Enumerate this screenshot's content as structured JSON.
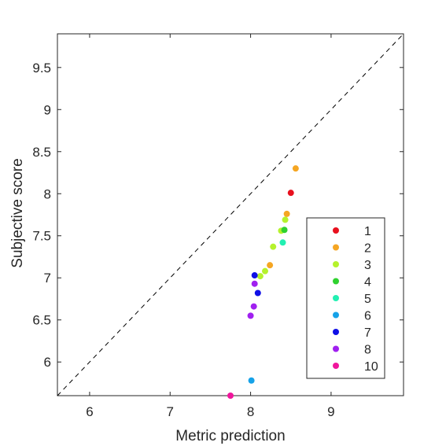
{
  "chart_data": {
    "type": "scatter",
    "xlabel": "Metric prediction",
    "ylabel": "Subjective score",
    "xlim": [
      5.6,
      9.9
    ],
    "ylim": [
      5.6,
      9.9
    ],
    "xticks": [
      6,
      7,
      8,
      9
    ],
    "yticks": [
      6,
      6.5,
      7,
      7.5,
      8,
      8.5,
      9,
      9.5
    ],
    "xtick_labels": [
      "6",
      "7",
      "8",
      "9"
    ],
    "ytick_labels": [
      "6",
      "6.5",
      "7",
      "7.5",
      "8",
      "8.5",
      "9",
      "9.5"
    ],
    "reference_line": "y = x (dashed)",
    "grid": false,
    "legend_position": "bottom-right",
    "series": [
      {
        "name": "1",
        "color": "#e8101e",
        "points": [
          [
            8.5,
            8.01
          ]
        ]
      },
      {
        "name": "2",
        "color": "#f5a623",
        "points": [
          [
            8.56,
            8.3
          ],
          [
            8.45,
            7.76
          ],
          [
            8.24,
            7.15
          ]
        ]
      },
      {
        "name": "3",
        "color": "#b5f22c",
        "points": [
          [
            8.43,
            7.69
          ],
          [
            8.38,
            7.56
          ],
          [
            8.28,
            7.37
          ],
          [
            8.18,
            7.08
          ],
          [
            8.12,
            7.02
          ]
        ]
      },
      {
        "name": "4",
        "color": "#2fd12f",
        "points": [
          [
            8.42,
            7.57
          ]
        ]
      },
      {
        "name": "5",
        "color": "#22f0b2",
        "points": [
          [
            8.4,
            7.42
          ]
        ]
      },
      {
        "name": "6",
        "color": "#16a2e8",
        "points": [
          [
            8.01,
            5.78
          ]
        ]
      },
      {
        "name": "7",
        "color": "#1010e6",
        "points": [
          [
            8.05,
            7.03
          ],
          [
            8.09,
            6.82
          ]
        ]
      },
      {
        "name": "8",
        "color": "#a020f0",
        "points": [
          [
            8.05,
            6.93
          ],
          [
            8.04,
            6.66
          ],
          [
            8.0,
            6.55
          ]
        ]
      },
      {
        "name": "10",
        "color": "#f0169c",
        "points": [
          [
            7.75,
            5.6
          ]
        ]
      }
    ]
  }
}
